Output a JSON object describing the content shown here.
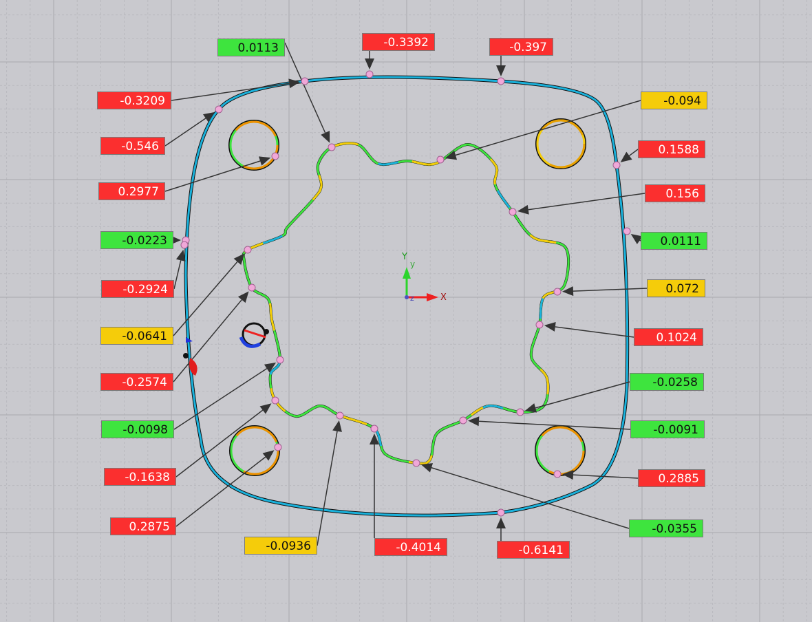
{
  "colors": {
    "red": "#fb2f2f",
    "green": "#3ee43e",
    "yellow": "#f5cc0a",
    "outer_profile": "#1ab2dc",
    "grid_major": "#a9a9ae",
    "grid_minor": "#b9b9be",
    "pick_point": "#f0a8d8"
  },
  "axes": {
    "y_label": "Y",
    "y_small": "y",
    "x_label": "X",
    "z_label": "z"
  },
  "deviation_labels": [
    {
      "value": "0.0113",
      "status": "green"
    },
    {
      "value": "-0.3392",
      "status": "red"
    },
    {
      "value": "-0.397",
      "status": "red"
    },
    {
      "value": "-0.3209",
      "status": "red"
    },
    {
      "value": "-0.546",
      "status": "red"
    },
    {
      "value": "0.2977",
      "status": "red"
    },
    {
      "value": "-0.0223",
      "status": "green"
    },
    {
      "value": "-0.2924",
      "status": "red"
    },
    {
      "value": "-0.0641",
      "status": "yellow"
    },
    {
      "value": "-0.2574",
      "status": "red"
    },
    {
      "value": "-0.0098",
      "status": "green"
    },
    {
      "value": "-0.1638",
      "status": "red"
    },
    {
      "value": "0.2875",
      "status": "red"
    },
    {
      "value": "-0.0936",
      "status": "yellow"
    },
    {
      "value": "-0.4014",
      "status": "red"
    },
    {
      "value": "-0.6141",
      "status": "red"
    },
    {
      "value": "-0.0355",
      "status": "green"
    },
    {
      "value": "0.2885",
      "status": "red"
    },
    {
      "value": "-0.0091",
      "status": "green"
    },
    {
      "value": "-0.0258",
      "status": "green"
    },
    {
      "value": "0.1024",
      "status": "red"
    },
    {
      "value": "0.072",
      "status": "yellow"
    },
    {
      "value": "0.0111",
      "status": "green"
    },
    {
      "value": "0.156",
      "status": "red"
    },
    {
      "value": "0.1588",
      "status": "red"
    },
    {
      "value": "-0.094",
      "status": "yellow"
    }
  ]
}
